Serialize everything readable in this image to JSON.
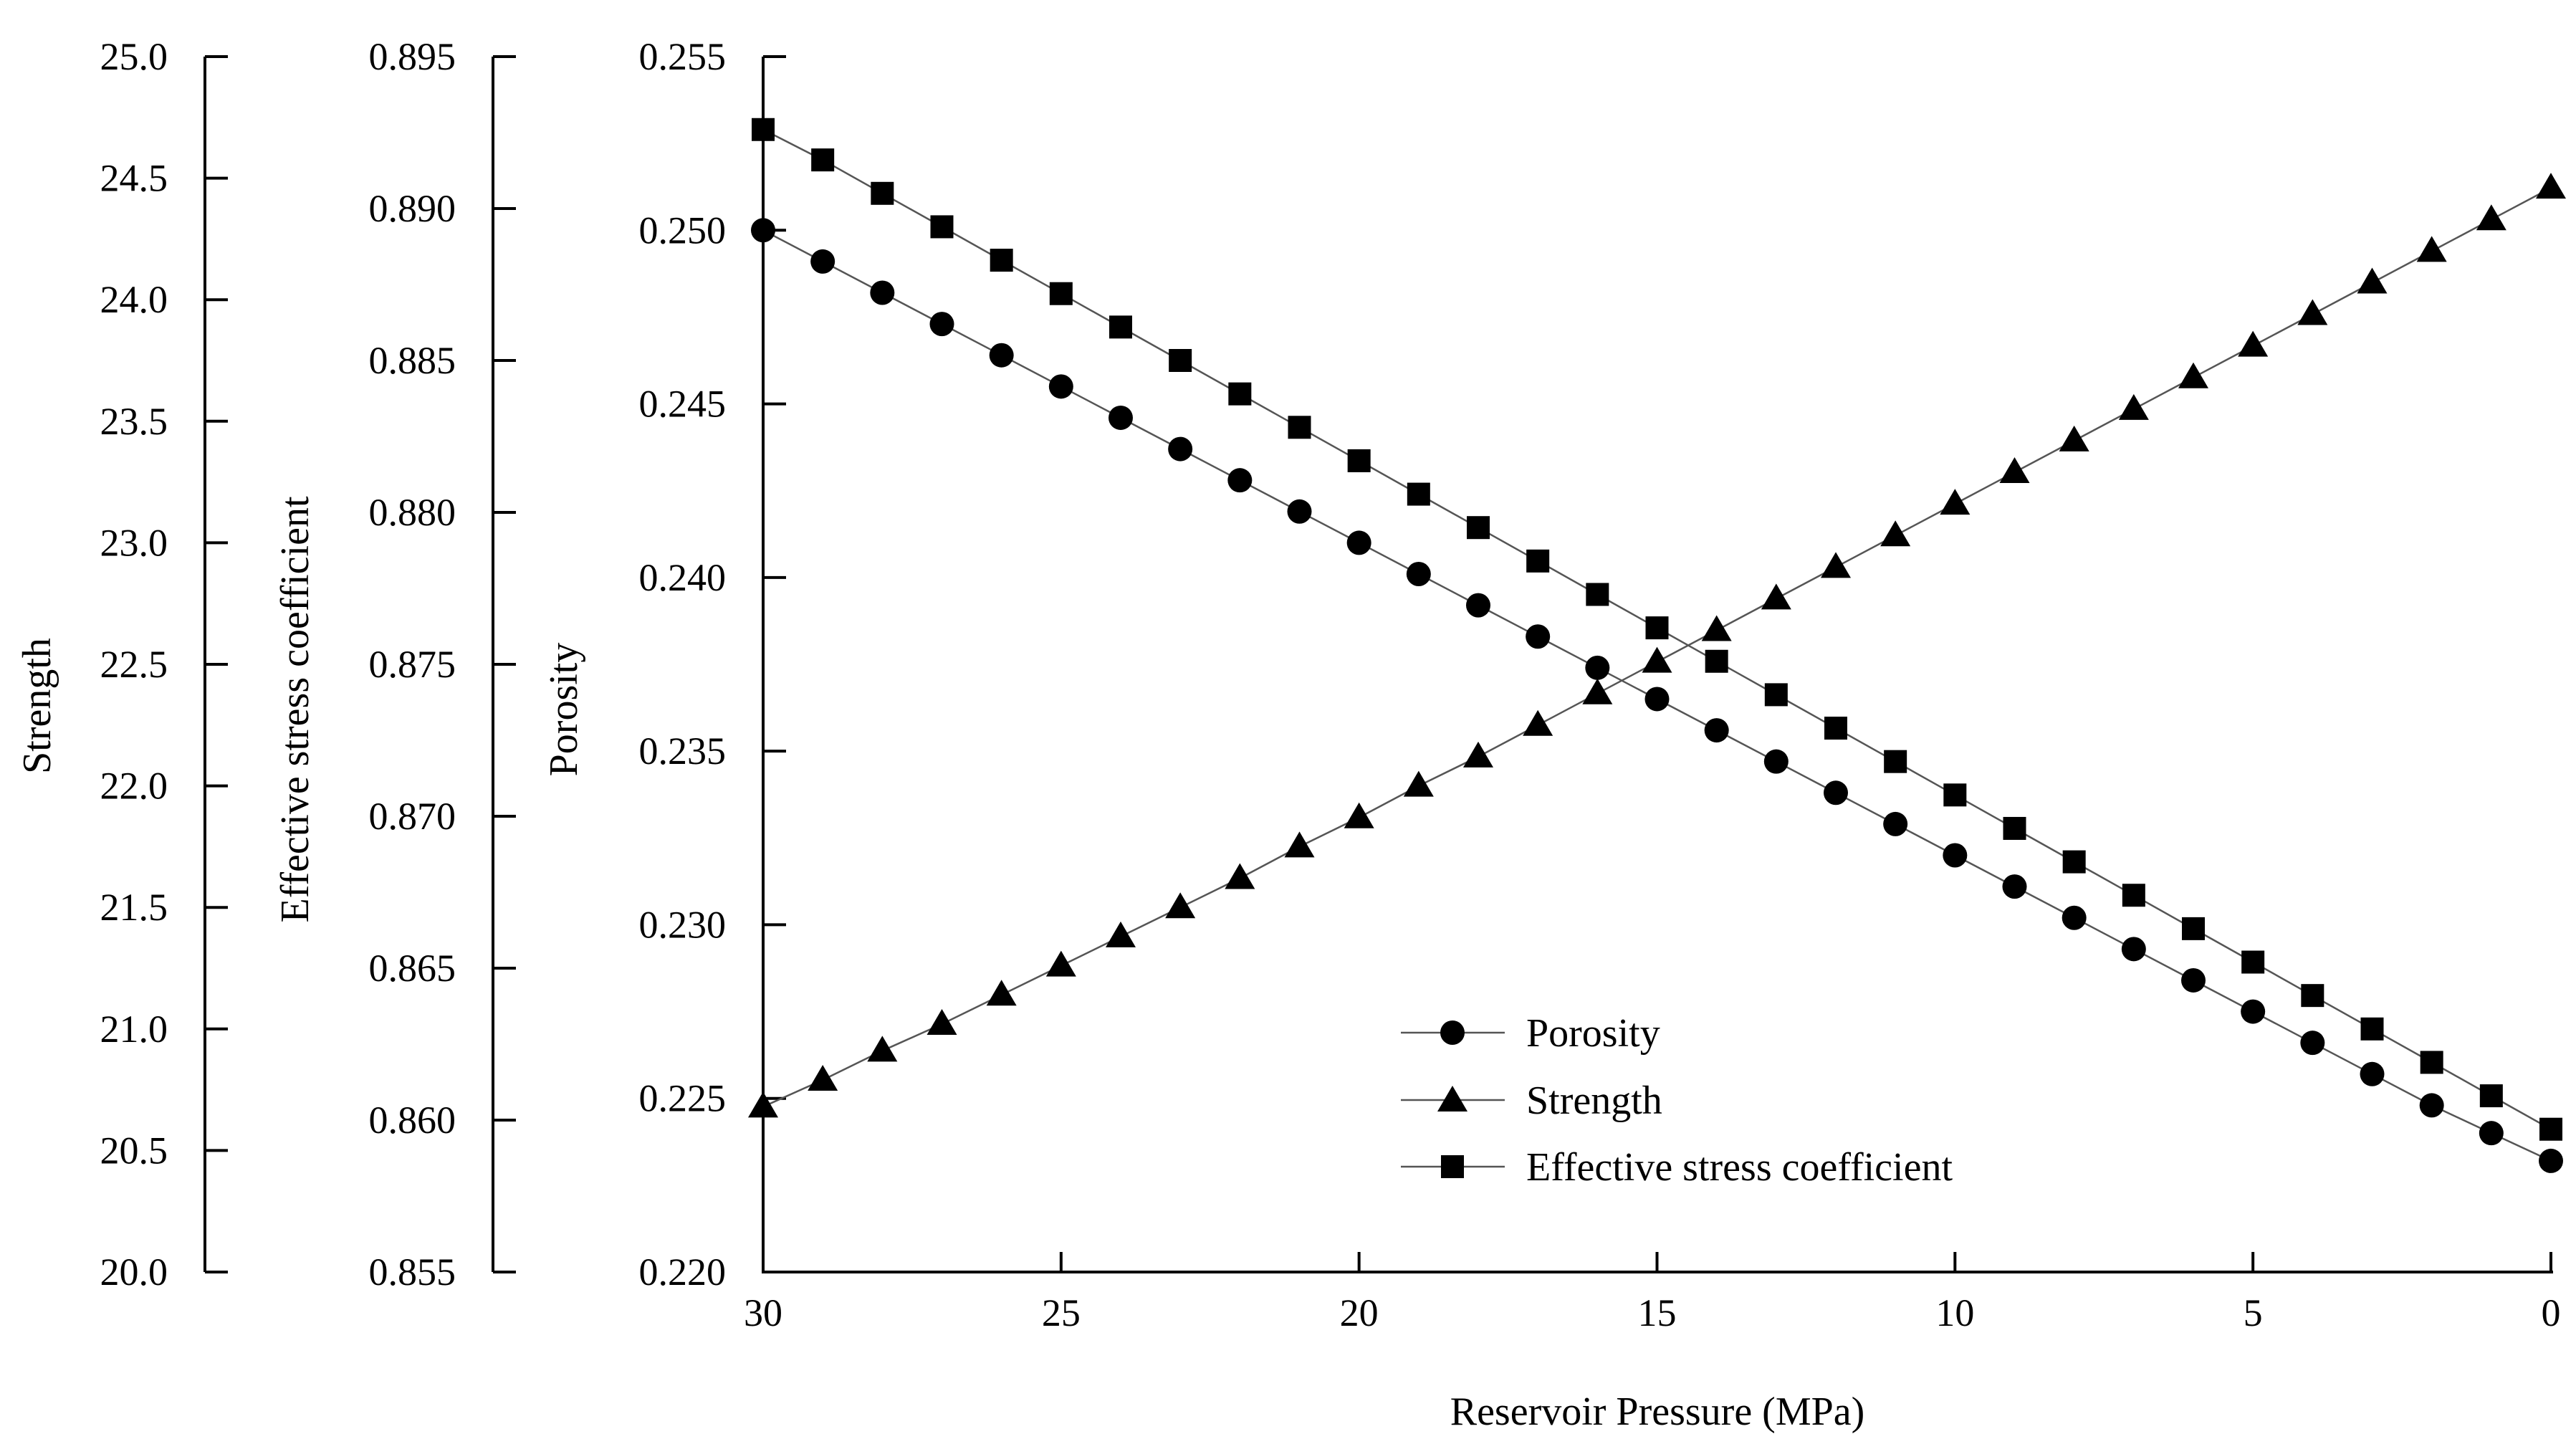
{
  "chart_data": {
    "type": "line",
    "xlabel": "Reservoir Pressure (MPa)",
    "x": [
      30,
      29,
      28,
      27,
      26,
      25,
      24,
      23,
      22,
      21,
      20,
      19,
      18,
      17,
      16,
      15,
      14,
      13,
      12,
      11,
      10,
      9,
      8,
      7,
      6,
      5,
      4,
      3,
      2,
      1,
      0
    ],
    "xlim": [
      30,
      0
    ],
    "xticks": [
      30,
      25,
      20,
      15,
      10,
      5,
      0
    ],
    "xtick_labels": [
      "30",
      "25",
      "20",
      "15",
      "10",
      "5",
      "0"
    ],
    "axes": [
      {
        "id": "strength",
        "label": "Strength",
        "ylim": [
          20.0,
          25.0
        ],
        "ticks": [
          20.0,
          20.5,
          21.0,
          21.5,
          22.0,
          22.5,
          23.0,
          23.5,
          24.0,
          24.5,
          25.0
        ],
        "tick_labels": [
          "20.0",
          "20.5",
          "21.0",
          "21.5",
          "22.0",
          "22.5",
          "23.0",
          "23.5",
          "24.0",
          "24.5",
          "25.0"
        ]
      },
      {
        "id": "esc",
        "label": "Effective stress coefficient",
        "ylim": [
          0.855,
          0.895
        ],
        "ticks": [
          0.855,
          0.86,
          0.865,
          0.87,
          0.875,
          0.88,
          0.885,
          0.89,
          0.895
        ],
        "tick_labels": [
          "0.855",
          "0.860",
          "0.865",
          "0.870",
          "0.875",
          "0.880",
          "0.885",
          "0.890",
          "0.895"
        ]
      },
      {
        "id": "porosity",
        "label": "Porosity",
        "ylim": [
          0.22,
          0.255
        ],
        "ticks": [
          0.22,
          0.225,
          0.23,
          0.235,
          0.24,
          0.245,
          0.25,
          0.255
        ],
        "tick_labels": [
          "0.220",
          "0.225",
          "0.230",
          "0.235",
          "0.240",
          "0.245",
          "0.250",
          "0.255"
        ]
      }
    ],
    "series": [
      {
        "name": "Porosity",
        "axis": "porosity",
        "marker": "circle",
        "values": [
          0.25,
          0.2491,
          0.2482,
          0.2473,
          0.2464,
          0.2455,
          0.2446,
          0.2437,
          0.2428,
          0.2419,
          0.241,
          0.2401,
          0.2392,
          0.2383,
          0.2374,
          0.2365,
          0.2356,
          0.2347,
          0.2338,
          0.2329,
          0.232,
          0.2311,
          0.2302,
          0.2293,
          0.2284,
          0.2275,
          0.2266,
          0.2257,
          0.2248,
          0.224,
          0.2232
        ]
      },
      {
        "name": "Strength",
        "axis": "strength",
        "marker": "triangle",
        "values": [
          20.68,
          20.79,
          20.91,
          21.02,
          21.14,
          21.26,
          21.38,
          21.5,
          21.62,
          21.75,
          21.87,
          22.0,
          22.12,
          22.25,
          22.38,
          22.51,
          22.64,
          22.77,
          22.9,
          23.03,
          23.16,
          23.29,
          23.42,
          23.55,
          23.68,
          23.81,
          23.94,
          24.07,
          24.2,
          24.33,
          24.46
        ]
      },
      {
        "name": "Effective stress coefficient",
        "axis": "esc",
        "marker": "square",
        "values": [
          0.8926,
          0.8916,
          0.8905,
          0.8894,
          0.8883,
          0.8872,
          0.8861,
          0.885,
          0.8839,
          0.8828,
          0.8817,
          0.8806,
          0.8795,
          0.8784,
          0.8773,
          0.8762,
          0.8751,
          0.874,
          0.8729,
          0.8718,
          0.8707,
          0.8696,
          0.8685,
          0.8674,
          0.8663,
          0.8652,
          0.8641,
          0.863,
          0.8619,
          0.8608,
          0.8597
        ]
      }
    ],
    "legend": {
      "position": "lower-center",
      "entries": [
        "Porosity",
        "Strength",
        "Effective stress coefficient"
      ]
    },
    "grid": false
  }
}
